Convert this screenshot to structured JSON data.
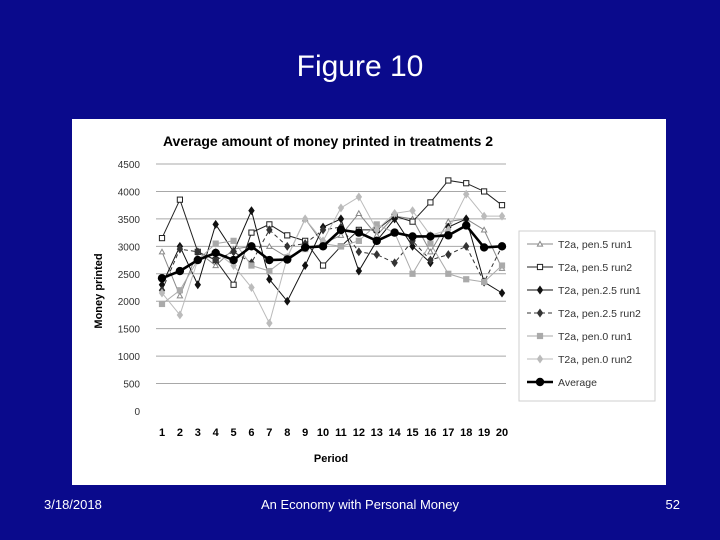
{
  "slide": {
    "title": "Figure 10",
    "footer_date": "3/18/2018",
    "footer_center": "An Economy with Personal Money",
    "page_number": "52",
    "background_color": "#0a0a8c"
  },
  "chart_data": {
    "type": "line",
    "title": "Average amount of money printed in treatments 2",
    "xlabel": "Period",
    "ylabel": "Money printed",
    "xlim": [
      1,
      20
    ],
    "ylim": [
      0,
      4500
    ],
    "yticks": [
      0,
      500,
      1000,
      1500,
      2000,
      2500,
      3000,
      3500,
      4000,
      4500
    ],
    "grid": true,
    "legend_position": "right",
    "x": [
      1,
      2,
      3,
      4,
      5,
      6,
      7,
      8,
      9,
      10,
      11,
      12,
      13,
      14,
      15,
      16,
      17,
      18,
      19,
      20
    ],
    "series": [
      {
        "name": "T2a, pen.5 run1",
        "marker": "triangle",
        "color": "#888888",
        "dash": "",
        "values": [
          2900,
          2100,
          2900,
          2650,
          2950,
          3000,
          3000,
          2800,
          3500,
          3050,
          3200,
          3600,
          3200,
          3550,
          3500,
          2900,
          3450,
          3500,
          3300,
          2600
        ]
      },
      {
        "name": "T2a, pen.5 run2",
        "marker": "square-open",
        "color": "#222222",
        "dash": "",
        "values": [
          3150,
          3850,
          2900,
          2750,
          2300,
          3250,
          3400,
          3200,
          3100,
          2650,
          3000,
          3300,
          3300,
          3550,
          3450,
          3800,
          4200,
          4150,
          4000,
          3750
        ]
      },
      {
        "name": "T2a, pen.2.5 run1",
        "marker": "diamond",
        "color": "#111111",
        "dash": "",
        "values": [
          2300,
          3000,
          2300,
          3400,
          2900,
          3650,
          2400,
          2000,
          2650,
          3350,
          3500,
          2550,
          3100,
          3500,
          3000,
          2700,
          3350,
          3500,
          2350,
          2150
        ]
      },
      {
        "name": "T2a, pen.2.5 run2",
        "marker": "diamond",
        "color": "#333333",
        "dash": "4,3",
        "values": [
          2200,
          2950,
          2900,
          2750,
          2900,
          2700,
          3300,
          3000,
          3050,
          3300,
          3350,
          2900,
          2850,
          2700,
          3100,
          2750,
          2850,
          3000,
          2350,
          3000
        ]
      },
      {
        "name": "T2a, pen.0 run1",
        "marker": "square",
        "color": "#aaaaaa",
        "dash": "",
        "values": [
          1950,
          2200,
          2750,
          3050,
          3100,
          2650,
          2550,
          2800,
          2950,
          3050,
          3000,
          3100,
          3400,
          3250,
          2500,
          3050,
          2500,
          2400,
          2350,
          2650
        ]
      },
      {
        "name": "T2a, pen.0 run2",
        "marker": "diamond",
        "color": "#bbbbbb",
        "dash": "",
        "values": [
          2150,
          1750,
          2750,
          2900,
          2650,
          2250,
          1600,
          2800,
          3500,
          3100,
          3700,
          3900,
          3300,
          3600,
          3650,
          3200,
          3300,
          3950,
          3550,
          3550
        ]
      },
      {
        "name": "Average",
        "marker": "circle",
        "color": "#000000",
        "dash": "",
        "values": [
          2420,
          2550,
          2750,
          2880,
          2750,
          3000,
          2750,
          2760,
          2980,
          3000,
          3300,
          3250,
          3100,
          3250,
          3180,
          3180,
          3200,
          3380,
          2980,
          3000
        ]
      }
    ]
  }
}
